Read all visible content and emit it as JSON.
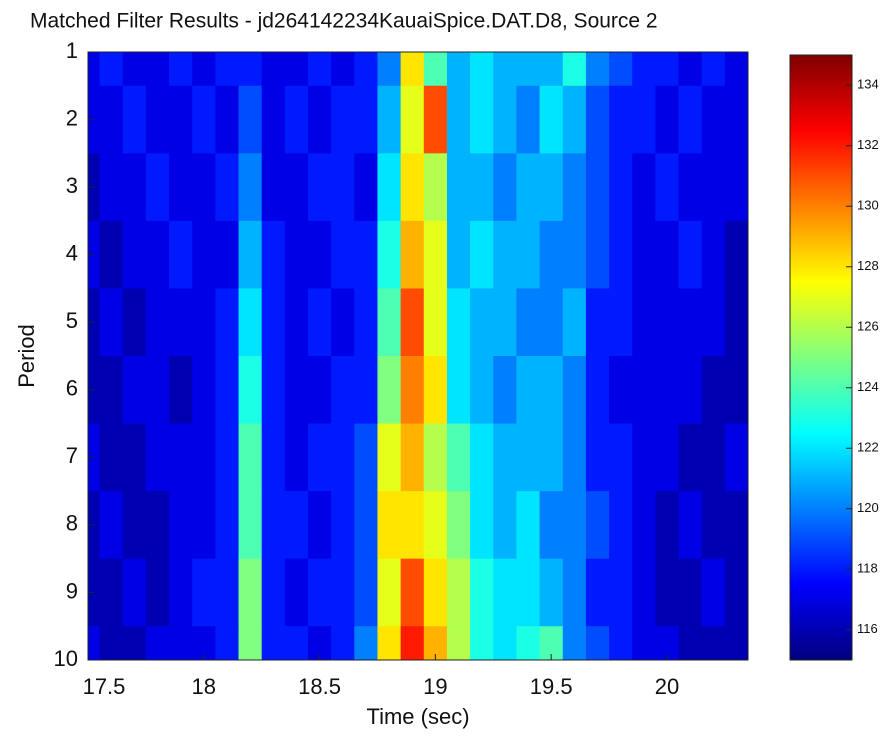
{
  "chart_data": {
    "type": "heatmap",
    "title": "Matched Filter Results - jd264142234KauaiSpice.DAT.D8, Source 2",
    "xlabel": "Time (sec)",
    "ylabel": "Period",
    "xlim": [
      17.5,
      20.35
    ],
    "xticks": [
      17.5,
      18,
      18.5,
      19,
      19.5,
      20
    ],
    "ylim": [
      1,
      10
    ],
    "yticks": [
      1,
      2,
      3,
      4,
      5,
      6,
      7,
      8,
      9,
      10
    ],
    "y_reversed": true,
    "clim": [
      115,
      135
    ],
    "cticks": [
      116,
      118,
      120,
      122,
      124,
      126,
      128,
      130,
      132,
      134
    ],
    "colormap": "jet",
    "x": [
      17.5,
      17.6,
      17.7,
      17.8,
      17.9,
      18.0,
      18.1,
      18.2,
      18.3,
      18.4,
      18.5,
      18.6,
      18.7,
      18.8,
      18.9,
      19.0,
      19.1,
      19.2,
      19.3,
      19.4,
      19.5,
      19.6,
      19.7,
      19.8,
      19.9,
      20.0,
      20.1,
      20.2,
      20.3
    ],
    "y": [
      1,
      2,
      3,
      4,
      5,
      6,
      7,
      8,
      9,
      10
    ],
    "z": [
      [
        117,
        118,
        117,
        117,
        118,
        117,
        118,
        118,
        117,
        117,
        118,
        117,
        118,
        120,
        128,
        124,
        121,
        122,
        121,
        121,
        121,
        123,
        120,
        119,
        118,
        118,
        117,
        118,
        117
      ],
      [
        117,
        117,
        118,
        117,
        117,
        118,
        117,
        119,
        117,
        118,
        117,
        118,
        118,
        121,
        127,
        131,
        121,
        122,
        121,
        120,
        122,
        121,
        119,
        118,
        118,
        117,
        118,
        117,
        117
      ],
      [
        116,
        117,
        117,
        118,
        117,
        117,
        118,
        120,
        117,
        117,
        118,
        118,
        117,
        122,
        128,
        126,
        121,
        121,
        120,
        121,
        121,
        120,
        119,
        118,
        117,
        118,
        117,
        117,
        117
      ],
      [
        117,
        116,
        117,
        117,
        118,
        117,
        117,
        121,
        118,
        117,
        117,
        118,
        118,
        123,
        129,
        127,
        121,
        122,
        121,
        121,
        120,
        120,
        119,
        118,
        117,
        117,
        118,
        117,
        116
      ],
      [
        116,
        117,
        116,
        117,
        117,
        117,
        118,
        122,
        118,
        117,
        118,
        117,
        118,
        124,
        131,
        127,
        122,
        121,
        121,
        120,
        120,
        121,
        118,
        118,
        117,
        117,
        117,
        117,
        116
      ],
      [
        116,
        116,
        117,
        117,
        116,
        117,
        118,
        123,
        118,
        117,
        117,
        118,
        118,
        125,
        130,
        128,
        122,
        121,
        120,
        121,
        121,
        120,
        118,
        117,
        117,
        117,
        117,
        116,
        116
      ],
      [
        117,
        116,
        116,
        117,
        117,
        117,
        118,
        124,
        118,
        117,
        118,
        118,
        119,
        127,
        129,
        126,
        124,
        122,
        121,
        121,
        121,
        120,
        118,
        118,
        117,
        117,
        116,
        116,
        117
      ],
      [
        116,
        117,
        116,
        116,
        117,
        117,
        118,
        124,
        118,
        118,
        117,
        118,
        119,
        128,
        128,
        127,
        125,
        122,
        121,
        122,
        120,
        120,
        119,
        118,
        117,
        116,
        117,
        116,
        116
      ],
      [
        116,
        116,
        117,
        116,
        117,
        118,
        118,
        125,
        118,
        117,
        118,
        118,
        119,
        127,
        131,
        128,
        126,
        123,
        122,
        122,
        121,
        120,
        118,
        118,
        117,
        116,
        116,
        117,
        116
      ],
      [
        117,
        116,
        116,
        117,
        117,
        117,
        118,
        125,
        118,
        118,
        117,
        118,
        120,
        128,
        132,
        129,
        126,
        123,
        122,
        123,
        124,
        120,
        119,
        118,
        117,
        117,
        116,
        116,
        116
      ]
    ]
  }
}
